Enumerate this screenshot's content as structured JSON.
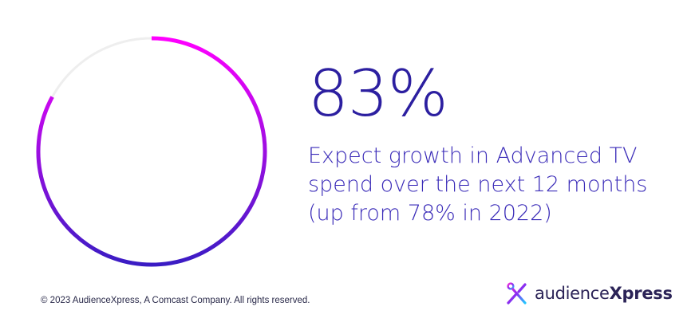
{
  "chart_data": {
    "type": "pie",
    "style": "ring",
    "values": [
      83,
      17
    ],
    "colors": {
      "progress_start": "#ff00ff",
      "progress_end": "#3a1cc4",
      "track": "#eeeeee"
    }
  },
  "stat": {
    "value": "83%",
    "line1": "Expect growth in Advanced TV",
    "line2": "spend over the next 12 months",
    "line3": "(up from 78% in 2022)"
  },
  "footer": {
    "copyright": "© 2023 AudienceXpress, A Comcast Company. All rights reserved."
  },
  "logo": {
    "icon": "audiencexpress-x-mark-icon",
    "name_light": "audience",
    "name_bold": "Xpress"
  },
  "colors": {
    "headline": "#2c1fa0",
    "brand_magenta": "#ff00ff",
    "brand_purple": "#3a1cc4"
  }
}
